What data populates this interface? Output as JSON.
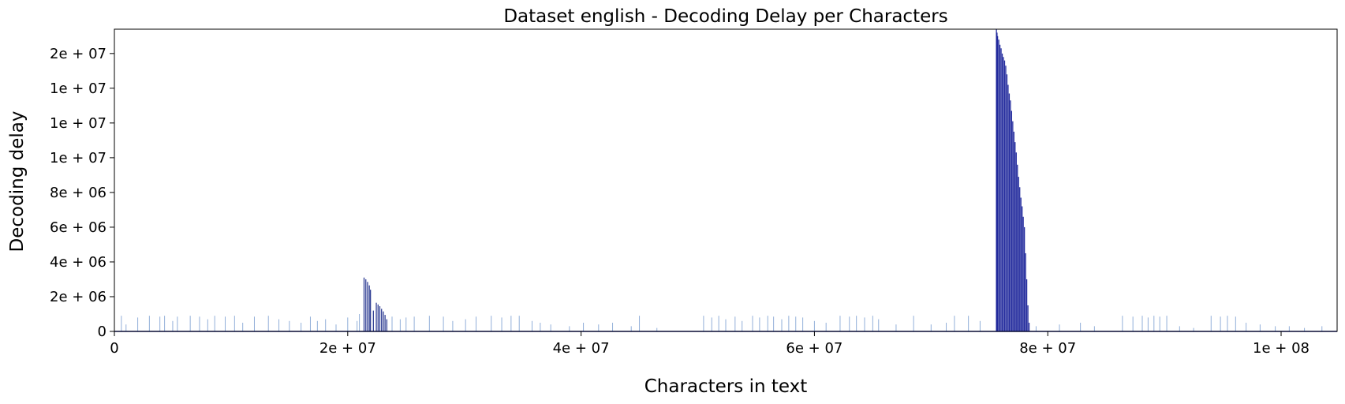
{
  "chart_data": {
    "type": "bar",
    "title": "Dataset english - Decoding Delay per Characters",
    "xlabel": "Characters in text",
    "ylabel": "Decoding delay",
    "xlim": [
      0,
      104800000
    ],
    "ylim": [
      0,
      17400000
    ],
    "grid": false,
    "xticks": [
      {
        "value": 0,
        "label": "0"
      },
      {
        "value": 20000000,
        "label": "2e + 07"
      },
      {
        "value": 40000000,
        "label": "4e + 07"
      },
      {
        "value": 60000000,
        "label": "6e + 07"
      },
      {
        "value": 80000000,
        "label": "8e + 07"
      },
      {
        "value": 100000000,
        "label": "1e + 08"
      }
    ],
    "yticks": [
      {
        "value": 0,
        "label": "0"
      },
      {
        "value": 2000000,
        "label": "2e + 06"
      },
      {
        "value": 4000000,
        "label": "4e + 06"
      },
      {
        "value": 6000000,
        "label": "6e + 06"
      },
      {
        "value": 8000000,
        "label": "8e + 06"
      },
      {
        "value": 10000000,
        "label": "1e + 07"
      },
      {
        "value": 12000000,
        "label": "1e + 07"
      },
      {
        "value": 14000000,
        "label": "1e + 07"
      },
      {
        "value": 16000000,
        "label": "2e + 07"
      }
    ],
    "series": [
      {
        "color": "#4a79c0",
        "bars": [
          [
            600000,
            900000
          ],
          [
            1000000,
            400000
          ],
          [
            2000000,
            800000
          ],
          [
            3000000,
            900000
          ],
          [
            3900000,
            850000
          ],
          [
            4300000,
            900000
          ],
          [
            5000000,
            600000
          ],
          [
            5400000,
            850000
          ],
          [
            6500000,
            900000
          ],
          [
            7300000,
            850000
          ],
          [
            8000000,
            700000
          ],
          [
            8600000,
            900000
          ],
          [
            9500000,
            850000
          ],
          [
            10300000,
            900000
          ],
          [
            11000000,
            500000
          ],
          [
            12000000,
            850000
          ],
          [
            13200000,
            900000
          ],
          [
            14100000,
            700000
          ],
          [
            15000000,
            600000
          ],
          [
            16000000,
            500000
          ],
          [
            16800000,
            850000
          ],
          [
            17400000,
            600000
          ],
          [
            18100000,
            700000
          ],
          [
            19000000,
            400000
          ],
          [
            20000000,
            800000
          ],
          [
            20800000,
            600000
          ],
          [
            21000000,
            1000000
          ],
          [
            23800000,
            850000
          ],
          [
            24500000,
            700000
          ],
          [
            25000000,
            800000
          ],
          [
            25700000,
            850000
          ],
          [
            27000000,
            900000
          ],
          [
            28200000,
            850000
          ],
          [
            29000000,
            600000
          ],
          [
            30100000,
            700000
          ],
          [
            31000000,
            850000
          ],
          [
            32300000,
            900000
          ],
          [
            33200000,
            800000
          ],
          [
            34000000,
            900000
          ],
          [
            34700000,
            900000
          ],
          [
            35800000,
            600000
          ],
          [
            36500000,
            500000
          ],
          [
            37400000,
            400000
          ],
          [
            39000000,
            300000
          ],
          [
            40200000,
            500000
          ],
          [
            41500000,
            400000
          ],
          [
            42700000,
            500000
          ],
          [
            44300000,
            300000
          ],
          [
            45000000,
            900000
          ],
          [
            46500000,
            200000
          ],
          [
            50500000,
            900000
          ],
          [
            51200000,
            800000
          ],
          [
            51800000,
            900000
          ],
          [
            52400000,
            700000
          ],
          [
            53200000,
            850000
          ],
          [
            53800000,
            600000
          ],
          [
            54700000,
            900000
          ],
          [
            55300000,
            800000
          ],
          [
            56000000,
            900000
          ],
          [
            56500000,
            850000
          ],
          [
            57200000,
            700000
          ],
          [
            57800000,
            900000
          ],
          [
            58400000,
            850000
          ],
          [
            59000000,
            800000
          ],
          [
            60000000,
            600000
          ],
          [
            61000000,
            500000
          ],
          [
            62200000,
            900000
          ],
          [
            63000000,
            850000
          ],
          [
            63600000,
            900000
          ],
          [
            64300000,
            800000
          ],
          [
            65000000,
            900000
          ],
          [
            65500000,
            700000
          ],
          [
            67000000,
            400000
          ],
          [
            68500000,
            900000
          ],
          [
            70000000,
            400000
          ],
          [
            71300000,
            500000
          ],
          [
            72000000,
            900000
          ],
          [
            73200000,
            900000
          ],
          [
            74200000,
            600000
          ],
          [
            79000000,
            300000
          ],
          [
            81000000,
            400000
          ],
          [
            82800000,
            500000
          ],
          [
            84000000,
            300000
          ],
          [
            86400000,
            900000
          ],
          [
            87300000,
            850000
          ],
          [
            88100000,
            900000
          ],
          [
            88600000,
            800000
          ],
          [
            89100000,
            900000
          ],
          [
            89600000,
            850000
          ],
          [
            90200000,
            900000
          ],
          [
            91300000,
            300000
          ],
          [
            92500000,
            200000
          ],
          [
            94000000,
            900000
          ],
          [
            94800000,
            850000
          ],
          [
            95400000,
            900000
          ],
          [
            96100000,
            850000
          ],
          [
            97000000,
            500000
          ],
          [
            98200000,
            400000
          ],
          [
            99500000,
            300000
          ],
          [
            100700000,
            300000
          ],
          [
            102000000,
            200000
          ],
          [
            103500000,
            300000
          ]
        ]
      },
      {
        "color": "#27368f",
        "bars": [
          [
            21400000,
            3100000
          ],
          [
            21550000,
            3000000
          ],
          [
            21700000,
            2850000
          ],
          [
            21850000,
            2650000
          ],
          [
            21950000,
            2400000
          ],
          [
            22200000,
            1200000
          ],
          [
            22450000,
            1650000
          ],
          [
            22600000,
            1550000
          ],
          [
            22750000,
            1450000
          ],
          [
            22900000,
            1300000
          ],
          [
            23050000,
            1150000
          ],
          [
            23200000,
            950000
          ],
          [
            23350000,
            700000
          ]
        ]
      },
      {
        "color": "#1a2399",
        "bars": [
          [
            75600000,
            17400000
          ],
          [
            75650000,
            17200000
          ],
          [
            75700000,
            17000000
          ],
          [
            75800000,
            16800000
          ],
          [
            75900000,
            16500000
          ],
          [
            76000000,
            16300000
          ],
          [
            76100000,
            16000000
          ],
          [
            76200000,
            15800000
          ],
          [
            76300000,
            15600000
          ],
          [
            76400000,
            15300000
          ],
          [
            76500000,
            14800000
          ],
          [
            76600000,
            14200000
          ],
          [
            76700000,
            13700000
          ],
          [
            76800000,
            13300000
          ],
          [
            76900000,
            12700000
          ],
          [
            77000000,
            12100000
          ],
          [
            77100000,
            11500000
          ],
          [
            77200000,
            10900000
          ],
          [
            77300000,
            10300000
          ],
          [
            77400000,
            9600000
          ],
          [
            77500000,
            8900000
          ],
          [
            77600000,
            8300000
          ],
          [
            77700000,
            7700000
          ],
          [
            77800000,
            7200000
          ],
          [
            77900000,
            6600000
          ],
          [
            78000000,
            6000000
          ],
          [
            78100000,
            4500000
          ],
          [
            78200000,
            3000000
          ],
          [
            78300000,
            1500000
          ],
          [
            78400000,
            500000
          ]
        ]
      }
    ]
  }
}
